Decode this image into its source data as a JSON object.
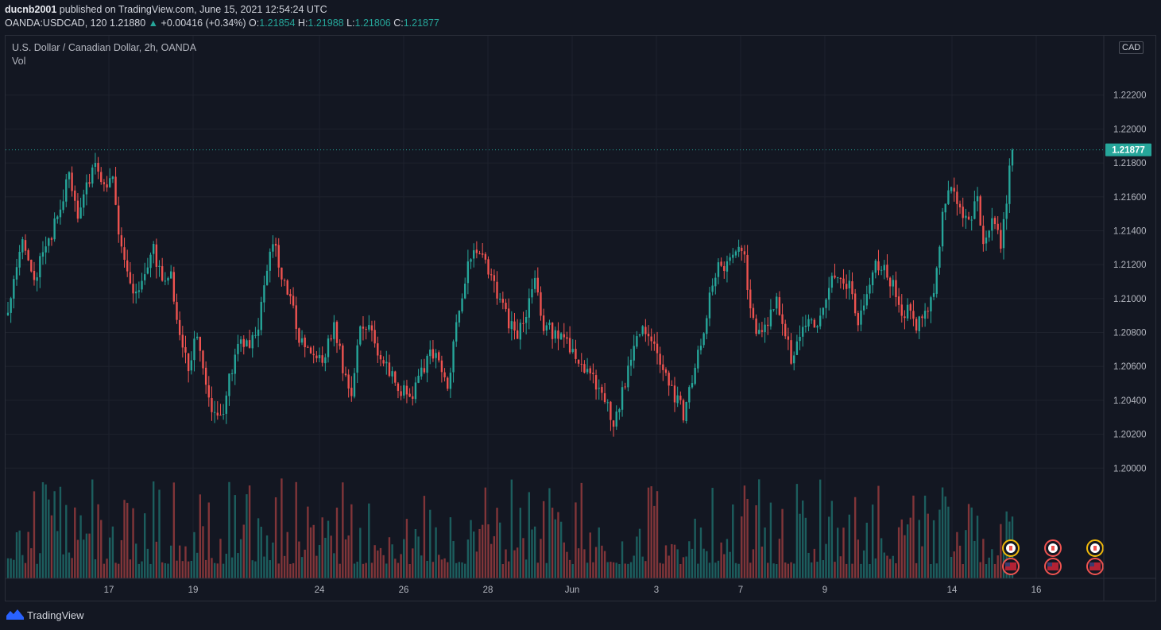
{
  "header": {
    "author": "ducnb2001",
    "published_text": "published on TradingView.com, June 15, 2021 12:54:24 UTC",
    "symbol": "OANDA:USDCAD, 120",
    "last": "1.21880",
    "change": "+0.00416 (+0.34%)",
    "o_label": "O:",
    "o_value": "1.21854",
    "h_label": "H:",
    "h_value": "1.21988",
    "l_label": "L:",
    "l_value": "1.21806",
    "c_label": "C:",
    "c_value": "1.21877"
  },
  "legend": {
    "title": "U.S. Dollar / Canadian Dollar, 2h, OANDA",
    "volume": "Vol"
  },
  "currency": "CAD",
  "footer": {
    "brand": "TradingView"
  },
  "colors": {
    "up": "#26a69a",
    "down": "#ef5350",
    "background": "#131722",
    "grid": "#1e222d",
    "last_price": "#26a69a"
  },
  "chart_data": {
    "type": "candlestick",
    "title": "U.S. Dollar / Canadian Dollar, 2h, OANDA",
    "ylim": [
      1.1935,
      1.2255
    ],
    "y_ticks": [
      "1.20000",
      "1.20200",
      "1.20400",
      "1.20600",
      "1.20800",
      "1.21000",
      "1.21200",
      "1.21400",
      "1.21600",
      "1.21800",
      "1.22000",
      "1.22200"
    ],
    "x_ticks": [
      "17",
      "19",
      "24",
      "26",
      "28",
      "Jun",
      "3",
      "7",
      "9",
      "14",
      "16"
    ],
    "last_price": 1.21877,
    "last_price_label": "1.21877",
    "anchors": [
      [
        0,
        1.2095
      ],
      [
        5,
        1.2133
      ],
      [
        9,
        1.2112
      ],
      [
        15,
        1.2138
      ],
      [
        17,
        1.215
      ],
      [
        21,
        1.2172
      ],
      [
        24,
        1.2148
      ],
      [
        27,
        1.2168
      ],
      [
        30,
        1.2178
      ],
      [
        33,
        1.2165
      ],
      [
        36,
        1.217
      ],
      [
        38,
        1.214
      ],
      [
        41,
        1.2115
      ],
      [
        44,
        1.21
      ],
      [
        47,
        1.2118
      ],
      [
        50,
        1.2128
      ],
      [
        53,
        1.211
      ],
      [
        56,
        1.2115
      ],
      [
        59,
        1.2075
      ],
      [
        62,
        1.206
      ],
      [
        65,
        1.208
      ],
      [
        68,
        1.2045
      ],
      [
        71,
        1.203
      ],
      [
        74,
        1.2035
      ],
      [
        77,
        1.206
      ],
      [
        80,
        1.2075
      ],
      [
        83,
        1.2075
      ],
      [
        86,
        1.2085
      ],
      [
        88,
        1.211
      ],
      [
        91,
        1.2135
      ],
      [
        94,
        1.2115
      ],
      [
        97,
        1.21
      ],
      [
        100,
        1.2075
      ],
      [
        103,
        1.207
      ],
      [
        106,
        1.2062
      ],
      [
        109,
        1.2068
      ],
      [
        112,
        1.2085
      ],
      [
        115,
        1.206
      ],
      [
        118,
        1.2043
      ],
      [
        121,
        1.2085
      ],
      [
        124,
        1.2082
      ],
      [
        127,
        1.207
      ],
      [
        130,
        1.2062
      ],
      [
        133,
        1.205
      ],
      [
        136,
        1.2045
      ],
      [
        139,
        1.2043
      ],
      [
        142,
        1.2055
      ],
      [
        145,
        1.2068
      ],
      [
        148,
        1.2065
      ],
      [
        151,
        1.205
      ],
      [
        154,
        1.2082
      ],
      [
        157,
        1.2112
      ],
      [
        160,
        1.213
      ],
      [
        163,
        1.2125
      ],
      [
        166,
        1.211
      ],
      [
        169,
        1.21
      ],
      [
        172,
        1.2085
      ],
      [
        175,
        1.208
      ],
      [
        178,
        1.209
      ],
      [
        181,
        1.211
      ],
      [
        184,
        1.2085
      ],
      [
        187,
        1.208
      ],
      [
        190,
        1.2078
      ],
      [
        193,
        1.207
      ],
      [
        196,
        1.206
      ],
      [
        199,
        1.2055
      ],
      [
        202,
        1.205
      ],
      [
        205,
        1.204
      ],
      [
        208,
        1.2025
      ],
      [
        211,
        1.2045
      ],
      [
        214,
        1.2065
      ],
      [
        217,
        1.208
      ],
      [
        220,
        1.208
      ],
      [
        223,
        1.207
      ],
      [
        226,
        1.2055
      ],
      [
        229,
        1.2043
      ],
      [
        232,
        1.2032
      ],
      [
        235,
        1.205
      ],
      [
        238,
        1.2075
      ],
      [
        241,
        1.21
      ],
      [
        244,
        1.212
      ],
      [
        247,
        1.2118
      ],
      [
        250,
        1.2125
      ],
      [
        253,
        1.2128
      ],
      [
        255,
        1.209
      ],
      [
        258,
        1.208
      ],
      [
        261,
        1.2088
      ],
      [
        264,
        1.2098
      ],
      [
        267,
        1.2078
      ],
      [
        269,
        1.2065
      ],
      [
        272,
        1.208
      ],
      [
        275,
        1.2088
      ],
      [
        278,
        1.2085
      ],
      [
        281,
        1.21
      ],
      [
        284,
        1.2115
      ],
      [
        287,
        1.211
      ],
      [
        290,
        1.2105
      ],
      [
        292,
        1.2085
      ],
      [
        295,
        1.21
      ],
      [
        298,
        1.212
      ],
      [
        301,
        1.2118
      ],
      [
        304,
        1.2108
      ],
      [
        307,
        1.209
      ],
      [
        309,
        1.2095
      ],
      [
        312,
        1.2085
      ],
      [
        315,
        1.209
      ],
      [
        318,
        1.2105
      ],
      [
        321,
        1.215
      ],
      [
        324,
        1.2165
      ],
      [
        327,
        1.2155
      ],
      [
        330,
        1.2145
      ],
      [
        333,
        1.216
      ],
      [
        335,
        1.2135
      ],
      [
        337,
        1.2143
      ],
      [
        339,
        1.2145
      ],
      [
        341,
        1.2133
      ],
      [
        343,
        1.216
      ],
      [
        345,
        1.2188
      ]
    ],
    "volume_max": 120
  }
}
